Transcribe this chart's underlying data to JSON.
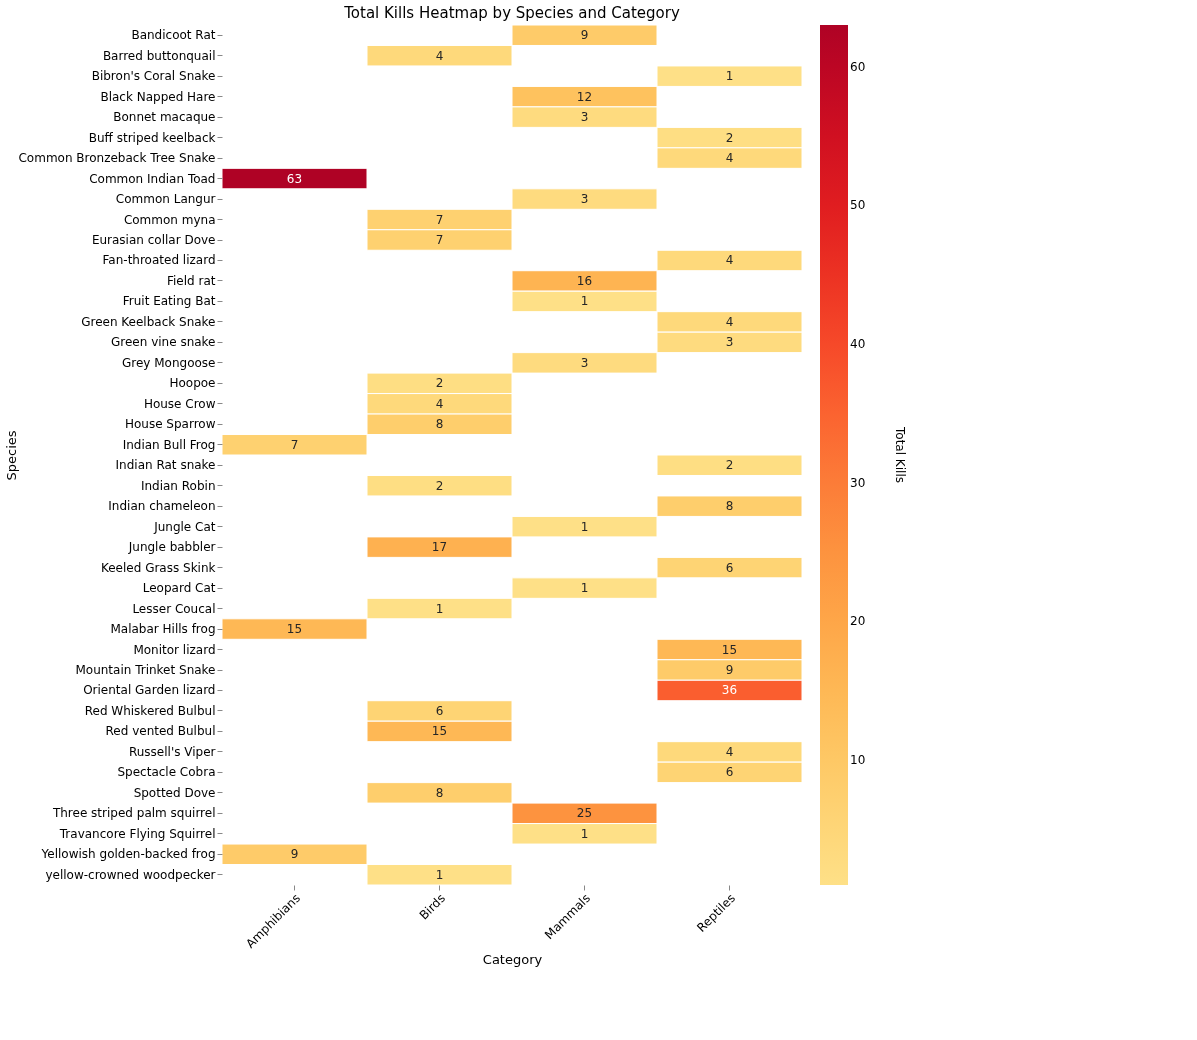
{
  "chart_data": {
    "type": "heatmap",
    "title": "Total Kills Heatmap by Species and Category",
    "xlabel": "Category",
    "ylabel": "Species",
    "clabel": "Total Kills",
    "categories": [
      "Amphibians",
      "Birds",
      "Mammals",
      "Reptiles"
    ],
    "y_categories": [
      "Bandicoot Rat",
      "Barred buttonquail",
      "Bibron's Coral Snake",
      "Black Napped Hare",
      "Bonnet macaque",
      "Buff striped keelback",
      "Common Bronzeback Tree Snake",
      "Common Indian Toad",
      "Common Langur",
      "Common myna",
      "Eurasian collar Dove",
      "Fan-throated lizard",
      "Field rat",
      "Fruit Eating Bat",
      "Green Keelback Snake",
      "Green vine snake",
      "Grey Mongoose",
      "Hoopoe",
      "House Crow",
      "House Sparrow",
      "Indian Bull Frog",
      "Indian Rat snake",
      "Indian Robin",
      "Indian chameleon",
      "Jungle Cat",
      "Jungle babbler",
      "Keeled Grass Skink",
      "Leopard Cat",
      "Lesser Coucal",
      "Malabar Hills frog",
      "Monitor lizard",
      "Mountain Trinket Snake",
      "Oriental Garden lizard",
      "Red Whiskered Bulbul",
      "Red vented Bulbul",
      "Russell's Viper",
      "Spectacle Cobra",
      "Spotted Dove",
      "Three striped palm squirrel",
      "Travancore Flying Squirrel",
      "Yellowish golden-backed frog",
      "yellow-crowned woodpecker"
    ],
    "cells": [
      [
        null,
        null,
        9,
        null
      ],
      [
        null,
        4,
        null,
        null
      ],
      [
        null,
        null,
        null,
        1
      ],
      [
        null,
        null,
        12,
        null
      ],
      [
        null,
        null,
        3,
        null
      ],
      [
        null,
        null,
        null,
        2
      ],
      [
        null,
        null,
        null,
        4
      ],
      [
        63,
        null,
        null,
        null
      ],
      [
        null,
        null,
        3,
        null
      ],
      [
        null,
        7,
        null,
        null
      ],
      [
        null,
        7,
        null,
        null
      ],
      [
        null,
        null,
        null,
        4
      ],
      [
        null,
        null,
        16,
        null
      ],
      [
        null,
        null,
        1,
        null
      ],
      [
        null,
        null,
        null,
        4
      ],
      [
        null,
        null,
        null,
        3
      ],
      [
        null,
        null,
        3,
        null
      ],
      [
        null,
        2,
        null,
        null
      ],
      [
        null,
        4,
        null,
        null
      ],
      [
        null,
        8,
        null,
        null
      ],
      [
        7,
        null,
        null,
        null
      ],
      [
        null,
        null,
        null,
        2
      ],
      [
        null,
        2,
        null,
        null
      ],
      [
        null,
        null,
        null,
        8
      ],
      [
        null,
        null,
        1,
        null
      ],
      [
        null,
        17,
        null,
        null
      ],
      [
        null,
        null,
        null,
        6
      ],
      [
        null,
        null,
        1,
        null
      ],
      [
        null,
        1,
        null,
        null
      ],
      [
        15,
        null,
        null,
        null
      ],
      [
        null,
        null,
        null,
        15
      ],
      [
        null,
        null,
        null,
        9
      ],
      [
        null,
        null,
        null,
        36
      ],
      [
        null,
        6,
        null,
        null
      ],
      [
        null,
        15,
        null,
        null
      ],
      [
        null,
        null,
        null,
        4
      ],
      [
        null,
        null,
        null,
        6
      ],
      [
        null,
        8,
        null,
        null
      ],
      [
        null,
        null,
        25,
        null
      ],
      [
        null,
        null,
        1,
        null
      ],
      [
        9,
        null,
        null,
        null
      ],
      [
        null,
        1,
        null,
        null
      ]
    ],
    "clim": [
      1,
      63
    ],
    "cticks": [
      10,
      20,
      30,
      40,
      50,
      60
    ],
    "data_labels": true,
    "grid": false
  }
}
